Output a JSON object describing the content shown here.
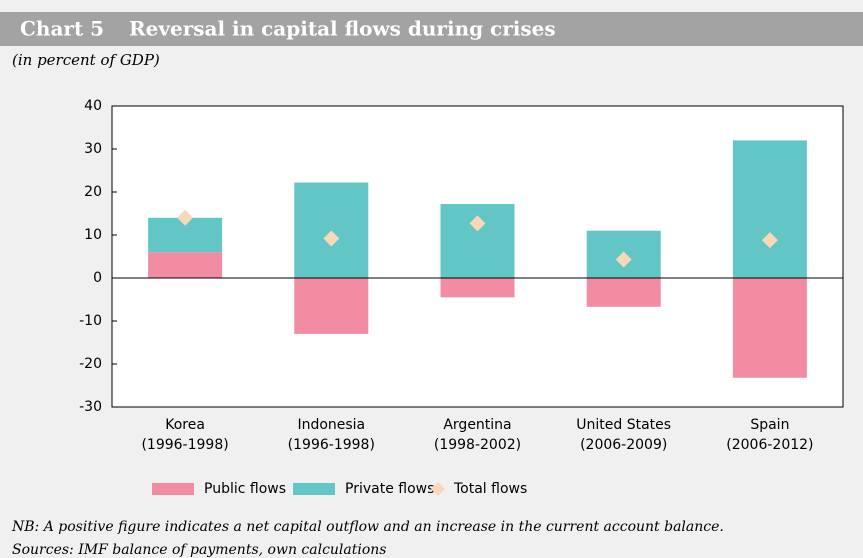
{
  "chart_data": {
    "type": "bar",
    "stacked": true,
    "label": "Chart 5",
    "title": "Reversal in capital flows during crises",
    "subtitle": "(in percent of GDP)",
    "categories": [
      "Korea\n(1996-1998)",
      "Indonesia\n(1996-1998)",
      "Argentina\n(1998-2002)",
      "United States\n(2006-2009)",
      "Spain\n(2006-2012)"
    ],
    "series": [
      {
        "name": "Public flows",
        "type": "bar",
        "color": "#f28ca2",
        "values": [
          6,
          -13,
          -4.5,
          -6.7,
          -23.2
        ]
      },
      {
        "name": "Private flows",
        "type": "bar",
        "color": "#62c6c6",
        "values": [
          8,
          22.2,
          17.2,
          11,
          32
        ]
      },
      {
        "name": "Total flows",
        "type": "diamond",
        "color": "#f9d8b8",
        "values": [
          14,
          9.2,
          12.7,
          4.3,
          8.8
        ]
      }
    ],
    "ylim": [
      -30,
      40
    ],
    "yticks": [
      -30,
      -20,
      -10,
      0,
      10,
      20,
      30,
      40
    ],
    "notes": [
      "NB: A positive figure indicates a net capital outflow and an increase in the current account balance.",
      "Sources: IMF balance of payments, own calculations"
    ]
  }
}
